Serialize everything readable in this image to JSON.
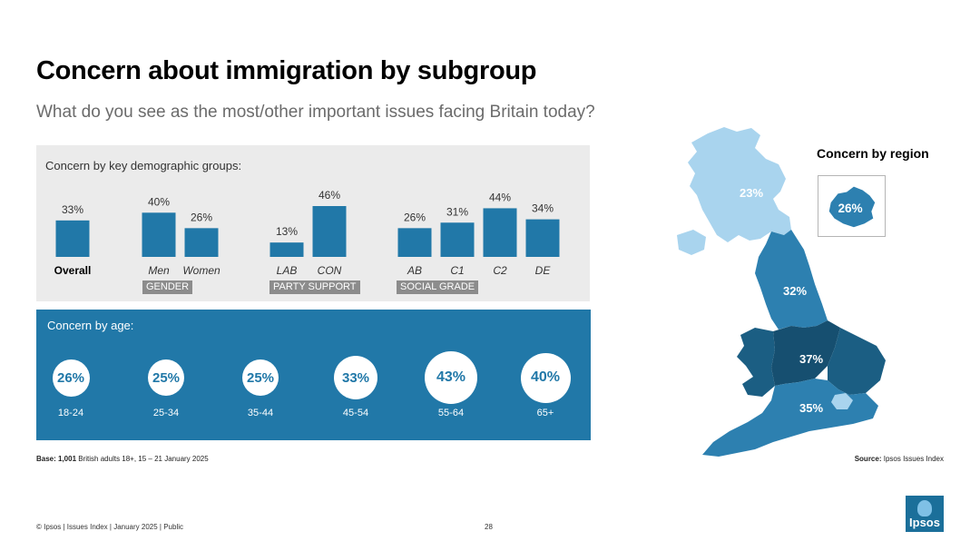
{
  "header": {
    "title": "Concern about immigration by subgroup",
    "subtitle": "What do you see as the most/other important issues facing Britain today?"
  },
  "demographics": {
    "heading": "Concern by key demographic groups:",
    "group_labels": {
      "gender": "GENDER",
      "party": "PARTY SUPPORT",
      "grade": "SOCIAL GRADE"
    }
  },
  "age": {
    "heading": "Concern by age:"
  },
  "region": {
    "title": "Concern by region",
    "london_label": "26%"
  },
  "notes": {
    "base_bold": "Base: 1,001",
    "base_rest": "British adults 18+, 15 – 21 January 2025",
    "source_bold": "Source:",
    "source_rest": "Ipsos Issues Index"
  },
  "footer": {
    "text": "© Ipsos | Issues Index | January 2025 | Public",
    "page": "28"
  },
  "logo": {
    "text": "Ipsos"
  },
  "colors": {
    "bar": "#2178a8",
    "panel_grey": "#ebebeb",
    "age_panel": "#2178a8",
    "map_light": "#a9d4ee",
    "map_mid": "#2d80b0",
    "map_dark": "#1b5e83",
    "map_darkest": "#164f70"
  },
  "chart_data": [
    {
      "type": "bar",
      "title": "Concern by key demographic groups:",
      "categories": [
        "Overall",
        "Men",
        "Women",
        "LAB",
        "CON",
        "AB",
        "C1",
        "C2",
        "DE"
      ],
      "values": [
        33,
        40,
        26,
        13,
        46,
        26,
        31,
        44,
        34
      ],
      "value_labels": [
        "33%",
        "40%",
        "26%",
        "13%",
        "46%",
        "26%",
        "31%",
        "44%",
        "34%"
      ],
      "groups": [
        {
          "name": "",
          "categories": [
            "Overall"
          ]
        },
        {
          "name": "GENDER",
          "categories": [
            "Men",
            "Women"
          ]
        },
        {
          "name": "PARTY SUPPORT",
          "categories": [
            "LAB",
            "CON"
          ]
        },
        {
          "name": "SOCIAL GRADE",
          "categories": [
            "AB",
            "C1",
            "C2",
            "DE"
          ]
        }
      ],
      "ylim": [
        0,
        50
      ],
      "grid": false
    },
    {
      "type": "bubble",
      "title": "Concern by age:",
      "categories": [
        "18-24",
        "25-34",
        "35-44",
        "45-54",
        "55-64",
        "65+"
      ],
      "values": [
        26,
        25,
        25,
        33,
        43,
        40
      ],
      "value_labels": [
        "26%",
        "25%",
        "25%",
        "33%",
        "43%",
        "40%"
      ]
    },
    {
      "type": "choropleth",
      "title": "Concern by region",
      "regions": [
        {
          "name": "Scotland",
          "value": 23,
          "label": "23%"
        },
        {
          "name": "North",
          "value": 32,
          "label": "32%"
        },
        {
          "name": "Midlands",
          "value": 37,
          "label": "37%"
        },
        {
          "name": "South",
          "value": 35,
          "label": "35%"
        },
        {
          "name": "London",
          "value": 26,
          "label": "26%"
        }
      ]
    }
  ]
}
